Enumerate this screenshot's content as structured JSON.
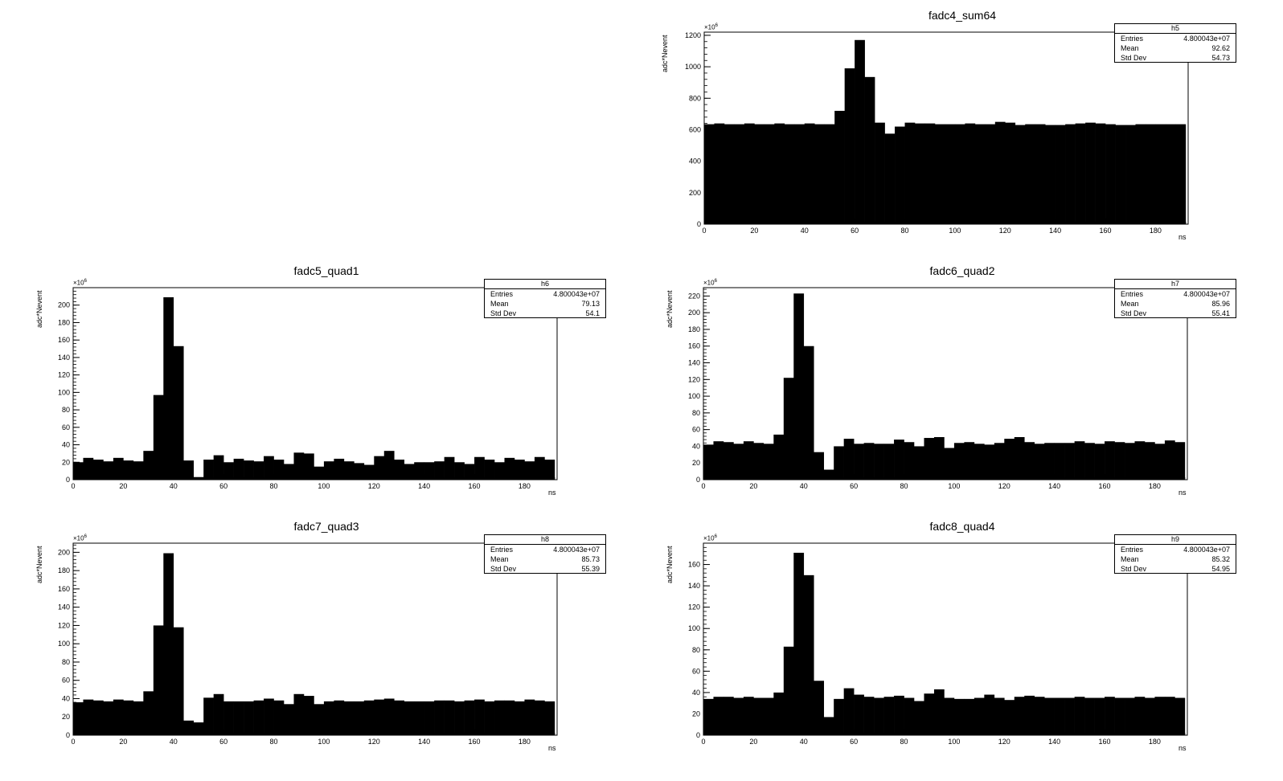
{
  "chart_data": [
    {
      "id": "pad_sum64",
      "type": "bar",
      "title": "fadc4_sum64",
      "xlabel": "ns",
      "ylabel": "adc*Nevent",
      "multiplier_base": "×10",
      "multiplier_exp": "6",
      "xlim": [
        0,
        193
      ],
      "ylim": [
        0,
        1220
      ],
      "xticks": [
        0,
        20,
        40,
        60,
        80,
        100,
        120,
        140,
        160,
        180
      ],
      "yticks": [
        0,
        200,
        400,
        600,
        800,
        1000,
        1200
      ],
      "bin_width": 4,
      "values": [
        635,
        640,
        635,
        635,
        640,
        635,
        635,
        640,
        635,
        635,
        640,
        635,
        635,
        720,
        990,
        1170,
        935,
        645,
        575,
        620,
        645,
        640,
        640,
        635,
        635,
        635,
        640,
        635,
        635,
        650,
        645,
        630,
        635,
        635,
        630,
        630,
        635,
        640,
        645,
        640,
        635,
        630,
        630,
        635,
        635,
        635,
        635,
        635
      ],
      "stats": {
        "name": "h5",
        "entries_label": "Entries",
        "entries": "4.800043e+07",
        "mean_label": "Mean",
        "mean": "92.62",
        "std_label": "Std Dev",
        "std": "54.73"
      },
      "color": "#000000"
    },
    {
      "id": "pad_quad1",
      "type": "bar",
      "title": "fadc5_quad1",
      "xlabel": "ns",
      "ylabel": "adc*Nevent",
      "multiplier_base": "×10",
      "multiplier_exp": "6",
      "xlim": [
        0,
        193
      ],
      "ylim": [
        0,
        220
      ],
      "xticks": [
        0,
        20,
        40,
        60,
        80,
        100,
        120,
        140,
        160,
        180
      ],
      "yticks": [
        0,
        20,
        40,
        60,
        80,
        100,
        120,
        140,
        160,
        180,
        200
      ],
      "bin_width": 4,
      "values": [
        20,
        25,
        23,
        21,
        25,
        22,
        21,
        33,
        97,
        209,
        153,
        22,
        3,
        23,
        28,
        20,
        24,
        22,
        21,
        27,
        23,
        18,
        31,
        30,
        15,
        21,
        24,
        21,
        19,
        17,
        27,
        33,
        23,
        18,
        20,
        20,
        21,
        26,
        20,
        18,
        26,
        23,
        20,
        25,
        23,
        21,
        26,
        23
      ],
      "stats": {
        "name": "h6",
        "entries_label": "Entries",
        "entries": "4.800043e+07",
        "mean_label": "Mean",
        "mean": "79.13",
        "std_label": "Std Dev",
        "std": "54.1"
      },
      "color": "#000000"
    },
    {
      "id": "pad_quad2",
      "type": "bar",
      "title": "fadc6_quad2",
      "xlabel": "ns",
      "ylabel": "adc*Nevent",
      "multiplier_base": "×10",
      "multiplier_exp": "6",
      "xlim": [
        0,
        193
      ],
      "ylim": [
        0,
        230
      ],
      "xticks": [
        0,
        20,
        40,
        60,
        80,
        100,
        120,
        140,
        160,
        180
      ],
      "yticks": [
        0,
        20,
        40,
        60,
        80,
        100,
        120,
        140,
        160,
        180,
        200,
        220
      ],
      "bin_width": 4,
      "values": [
        42,
        46,
        45,
        43,
        46,
        44,
        43,
        54,
        122,
        223,
        160,
        33,
        12,
        40,
        49,
        43,
        44,
        43,
        43,
        48,
        45,
        40,
        50,
        51,
        38,
        44,
        45,
        43,
        42,
        44,
        49,
        51,
        45,
        43,
        44,
        44,
        44,
        46,
        44,
        43,
        46,
        45,
        44,
        46,
        45,
        43,
        47,
        45
      ],
      "stats": {
        "name": "h7",
        "entries_label": "Entries",
        "entries": "4.800043e+07",
        "mean_label": "Mean",
        "mean": "85.96",
        "std_label": "Std Dev",
        "std": "55.41"
      },
      "color": "#000000"
    },
    {
      "id": "pad_quad3",
      "type": "bar",
      "title": "fadc7_quad3",
      "xlabel": "ns",
      "ylabel": "adc*Nevent",
      "multiplier_base": "×10",
      "multiplier_exp": "6",
      "xlim": [
        0,
        193
      ],
      "ylim": [
        0,
        210
      ],
      "xticks": [
        0,
        20,
        40,
        60,
        80,
        100,
        120,
        140,
        160,
        180
      ],
      "yticks": [
        0,
        20,
        40,
        60,
        80,
        100,
        120,
        140,
        160,
        180,
        200
      ],
      "bin_width": 4,
      "values": [
        36,
        39,
        38,
        37,
        39,
        38,
        37,
        48,
        120,
        199,
        118,
        16,
        14,
        41,
        45,
        37,
        37,
        37,
        38,
        40,
        38,
        34,
        45,
        43,
        34,
        37,
        38,
        37,
        37,
        38,
        39,
        40,
        38,
        37,
        37,
        37,
        38,
        38,
        37,
        38,
        39,
        37,
        38,
        38,
        37,
        39,
        38,
        37
      ],
      "stats": {
        "name": "h8",
        "entries_label": "Entries",
        "entries": "4.800043e+07",
        "mean_label": "Mean",
        "mean": "85.73",
        "std_label": "Std Dev",
        "std": "55.39"
      },
      "color": "#000000"
    },
    {
      "id": "pad_quad4",
      "type": "bar",
      "title": "fadc8_quad4",
      "xlabel": "ns",
      "ylabel": "adc*Nevent",
      "multiplier_base": "×10",
      "multiplier_exp": "6",
      "xlim": [
        0,
        193
      ],
      "ylim": [
        0,
        180
      ],
      "xticks": [
        0,
        20,
        40,
        60,
        80,
        100,
        120,
        140,
        160,
        180
      ],
      "yticks": [
        0,
        20,
        40,
        60,
        80,
        100,
        120,
        140,
        160
      ],
      "bin_width": 4,
      "values": [
        34,
        36,
        36,
        35,
        36,
        35,
        35,
        40,
        83,
        171,
        150,
        51,
        17,
        34,
        44,
        38,
        36,
        35,
        36,
        37,
        35,
        32,
        39,
        43,
        35,
        34,
        34,
        35,
        38,
        35,
        33,
        36,
        37,
        36,
        35,
        35,
        35,
        36,
        35,
        35,
        36,
        35,
        35,
        36,
        35,
        36,
        36,
        35
      ],
      "stats": {
        "name": "h9",
        "entries_label": "Entries",
        "entries": "4.800043e+07",
        "mean_label": "Mean",
        "mean": "85.32",
        "std_label": "Std Dev",
        "std": "54.95"
      },
      "color": "#000000"
    }
  ]
}
